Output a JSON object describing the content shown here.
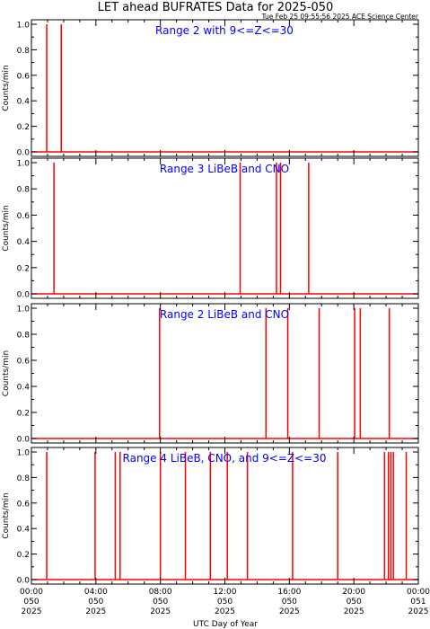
{
  "title": "LET ahead BUFRATES Data for 2025-050",
  "timestamp": "Tue Feb 25 09:55:56 2025 ACE Science Center",
  "xlabel": "UTC Day of Year",
  "ylabel": "Counts/min",
  "colors": {
    "data": "#ff0000",
    "panel_title": "#0000ff",
    "axes": "#000000"
  },
  "x_ticks": [
    {
      "hour": 0,
      "time": "00:00",
      "doy": "050",
      "year": "2025"
    },
    {
      "hour": 4,
      "time": "04:00",
      "doy": "050",
      "year": "2025"
    },
    {
      "hour": 8,
      "time": "08:00",
      "doy": "050",
      "year": "2025"
    },
    {
      "hour": 12,
      "time": "12:00",
      "doy": "050",
      "year": "2025"
    },
    {
      "hour": 16,
      "time": "16:00",
      "doy": "050",
      "year": "2025"
    },
    {
      "hour": 20,
      "time": "20:00",
      "doy": "050",
      "year": "2025"
    },
    {
      "hour": 24,
      "time": "00:00",
      "doy": "051",
      "year": "2025"
    }
  ],
  "y_ticks": [
    "0.0",
    "0.2",
    "0.4",
    "0.6",
    "0.8",
    "1.0"
  ],
  "chart_data": [
    {
      "type": "line",
      "title": "Range 2 with 9<=Z<=30",
      "xlim": [
        0,
        24
      ],
      "ylim": [
        0,
        1
      ],
      "spikes_hours": [
        0.95,
        1.85
      ]
    },
    {
      "type": "line",
      "title": "Range 3 LiBeB and CNO",
      "xlim": [
        0,
        24
      ],
      "ylim": [
        0,
        1
      ],
      "spikes_hours": [
        1.4,
        12.95,
        15.2,
        15.45,
        17.2
      ]
    },
    {
      "type": "line",
      "title": "Range 2 LiBeB and CNO",
      "xlim": [
        0,
        24
      ],
      "ylim": [
        0,
        1
      ],
      "spikes_hours": [
        7.95,
        14.55,
        15.9,
        17.85,
        20.05,
        20.4,
        22.2
      ]
    },
    {
      "type": "line",
      "title": "Range 4 LiBeB, CNO, and 9<=Z<=30",
      "xlim": [
        0,
        24
      ],
      "ylim": [
        0,
        1
      ],
      "spikes_hours": [
        0.95,
        3.95,
        5.2,
        5.5,
        8.0,
        9.55,
        11.1,
        12.15,
        13.4,
        16.2,
        19.0,
        21.9,
        22.15,
        22.3,
        22.45,
        23.25
      ]
    }
  ]
}
